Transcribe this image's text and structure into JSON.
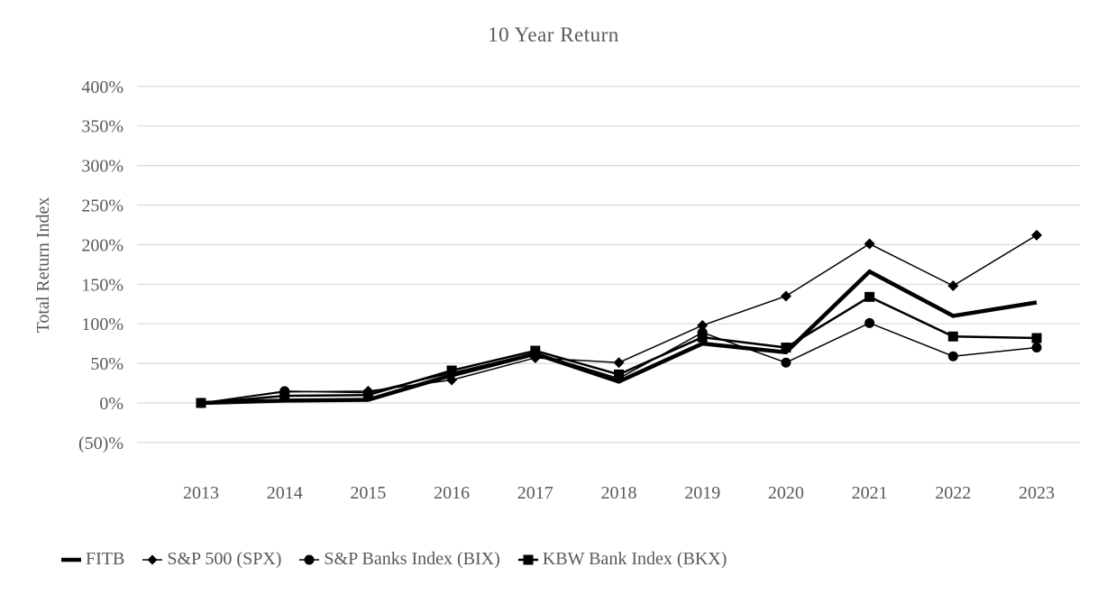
{
  "chart_data": {
    "type": "line",
    "title": "10 Year Return",
    "xlabel": "",
    "ylabel": "Total Return Index",
    "categories": [
      "2013",
      "2014",
      "2015",
      "2016",
      "2017",
      "2018",
      "2019",
      "2020",
      "2021",
      "2022",
      "2023"
    ],
    "ylim": [
      -50,
      400
    ],
    "y_tick_step": 50,
    "y_ticks": [
      {
        "value": 400,
        "label": "400%"
      },
      {
        "value": 350,
        "label": "350%"
      },
      {
        "value": 300,
        "label": "300%"
      },
      {
        "value": 250,
        "label": "250%"
      },
      {
        "value": 200,
        "label": "200%"
      },
      {
        "value": 150,
        "label": "150%"
      },
      {
        "value": 100,
        "label": "100%"
      },
      {
        "value": 50,
        "label": "50%"
      },
      {
        "value": 0,
        "label": "0%"
      },
      {
        "value": -50,
        "label": "(50)%"
      }
    ],
    "grid": true,
    "legend_position": "bottom",
    "series": [
      {
        "key": "fitb",
        "name": "FITB",
        "marker": "none",
        "line_width": 4.5,
        "values": [
          0,
          3,
          4,
          35,
          62,
          27,
          75,
          64,
          166,
          110,
          127
        ]
      },
      {
        "key": "spx",
        "name": "S&P 500 (SPX)",
        "marker": "diamond",
        "line_width": 1.5,
        "values": [
          0,
          14,
          15,
          29,
          57,
          51,
          98,
          135,
          201,
          148,
          212
        ]
      },
      {
        "key": "bix",
        "name": "S&P Banks Index (BIX)",
        "marker": "circle",
        "line_width": 1.5,
        "values": [
          0,
          15,
          13,
          38,
          63,
          31,
          89,
          51,
          101,
          59,
          70
        ]
      },
      {
        "key": "bkx",
        "name": "KBW Bank Index (BKX)",
        "marker": "square",
        "line_width": 2.5,
        "values": [
          0,
          9,
          10,
          41,
          66,
          36,
          83,
          70,
          134,
          84,
          82
        ]
      }
    ],
    "colors": {
      "series": "#000000",
      "gridline": "#d9d9d9",
      "text": "#595959",
      "background": "#ffffff"
    }
  }
}
